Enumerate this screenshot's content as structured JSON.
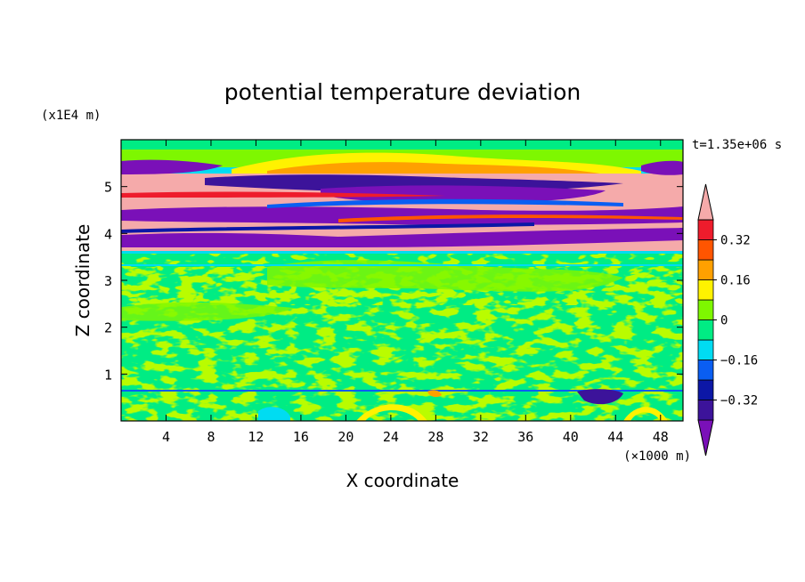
{
  "chart_data": {
    "type": "heatmap",
    "title": "potential temperature deviation",
    "xlabel": "X coordinate",
    "ylabel": "Z coordinate",
    "x_unit": "(×1000 m)",
    "y_unit": "(x1E4 m)",
    "time_label": "t=1.35e+06 s",
    "xlim": [
      0,
      50
    ],
    "ylim": [
      0,
      6
    ],
    "x_ticks": [
      4,
      8,
      12,
      16,
      20,
      24,
      28,
      32,
      36,
      40,
      44,
      48
    ],
    "y_ticks": [
      1,
      2,
      3,
      4,
      5
    ],
    "colorbar": {
      "levels": [
        -0.4,
        -0.32,
        -0.24,
        -0.16,
        -0.08,
        0,
        0.08,
        0.16,
        0.24,
        0.32,
        0.4
      ],
      "labels": [
        {
          "value": 0.32,
          "text": "0.32"
        },
        {
          "value": 0.16,
          "text": "0.16"
        },
        {
          "value": 0,
          "text": "0"
        },
        {
          "value": -0.16,
          "text": "−0.16"
        },
        {
          "value": -0.32,
          "text": "−0.32"
        }
      ],
      "colors": [
        "#7a10b8",
        "#3c139a",
        "#0c17a6",
        "#0a5ef2",
        "#00dcf2",
        "#00ec84",
        "#7ef700",
        "#fff200",
        "#ffa000",
        "#ff5500",
        "#ee1c2c",
        "#f5aaaa"
      ],
      "extend": "both"
    },
    "grid": false,
    "background_color": "#00ec84"
  }
}
